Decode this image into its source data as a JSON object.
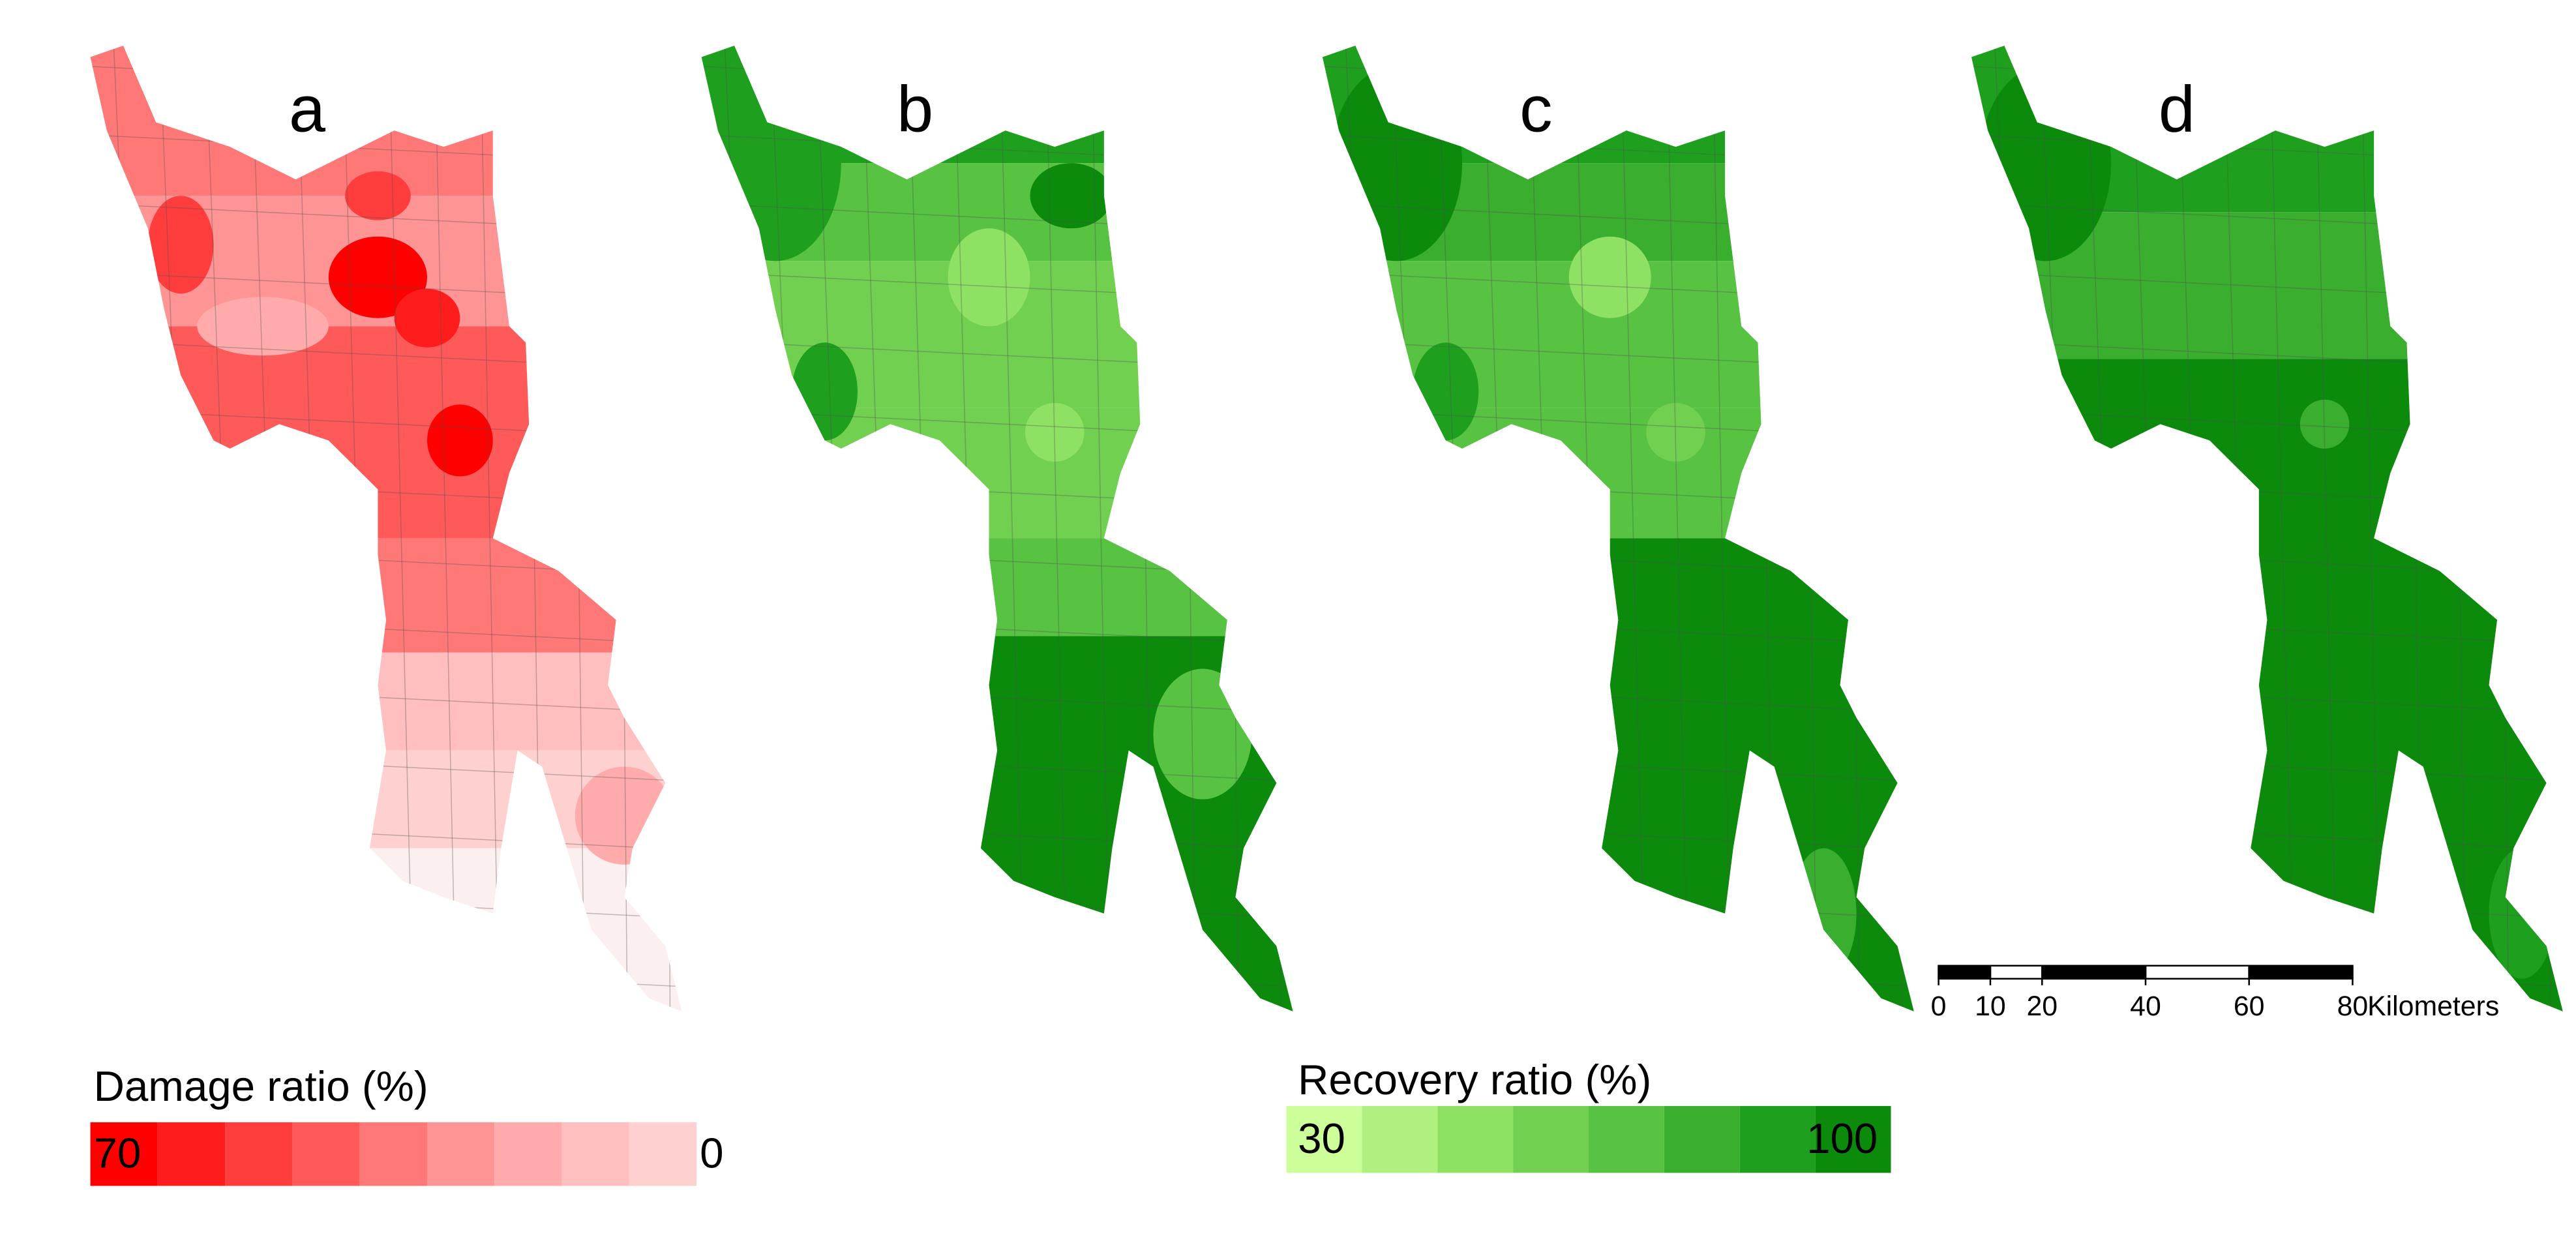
{
  "panels": [
    {
      "label": "a"
    },
    {
      "label": "b"
    },
    {
      "label": "c"
    },
    {
      "label": "d"
    }
  ],
  "damage_legend": {
    "title": "Damage ratio (%)",
    "max_label": "70",
    "min_label": "0",
    "colors": [
      "#fe0000",
      "#ff1c1c",
      "#ff3d3d",
      "#ff5a5a",
      "#ff7878",
      "#ff9494",
      "#ffabab",
      "#ffbfbf",
      "#ffd0d0"
    ]
  },
  "recovery_legend": {
    "title": "Recovery ratio (%)",
    "min_label": "30",
    "max_label": "100",
    "colors": [
      "#ccff99",
      "#b0f081",
      "#8fe163",
      "#71d050",
      "#58c242",
      "#3aae2e",
      "#1ea01e",
      "#0b8a0b"
    ]
  },
  "scale_bar": {
    "ticks": [
      0,
      10,
      20,
      40,
      60,
      80
    ],
    "unit": "Kilometers"
  }
}
